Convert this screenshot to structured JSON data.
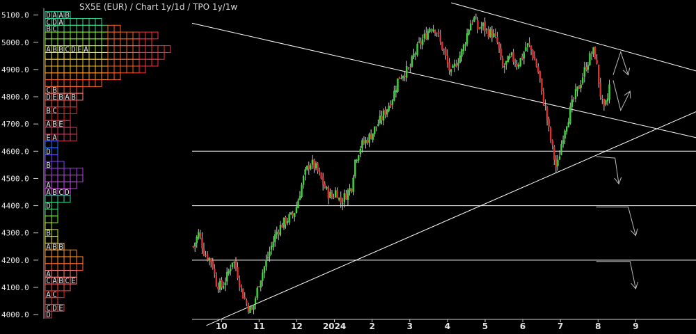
{
  "title": "SX5E (EUR) /  Chart 1y/1d / TPO 1y/1w",
  "chart_data": {
    "type": "candlestick",
    "ylim": [
      3985,
      5145
    ],
    "y_ticks": [
      4000,
      4100,
      4200,
      4300,
      4400,
      4500,
      4600,
      4700,
      4800,
      4900,
      5000,
      5100
    ],
    "y_tick_labels": [
      "4000.0",
      "4100.0",
      "4200.0",
      "4300.0",
      "4400.0",
      "4500.0",
      "4600.0",
      "4700.0",
      "4800.0",
      "4900.0",
      "5000.0",
      "5100.0"
    ],
    "x_tick_labels": [
      "10",
      "11",
      "12",
      "2024",
      "2",
      "3",
      "4",
      "5",
      "6",
      "7",
      "8",
      "9"
    ],
    "x_months": [
      0,
      1,
      2,
      3,
      4,
      5,
      6,
      7,
      8,
      9,
      10,
      11
    ],
    "xlim": [
      -0.78,
      12.6
    ],
    "close_path": [
      [
        -0.75,
        4250
      ],
      [
        -0.6,
        4300
      ],
      [
        -0.45,
        4225
      ],
      [
        -0.25,
        4195
      ],
      [
        -0.15,
        4120
      ],
      [
        0,
        4100
      ],
      [
        0.15,
        4140
      ],
      [
        0.3,
        4205
      ],
      [
        0.4,
        4165
      ],
      [
        0.55,
        4080
      ],
      [
        0.7,
        4030
      ],
      [
        0.8,
        4010
      ],
      [
        0.9,
        4060
      ],
      [
        1.0,
        4120
      ],
      [
        1.15,
        4180
      ],
      [
        1.3,
        4240
      ],
      [
        1.45,
        4300
      ],
      [
        1.6,
        4330
      ],
      [
        1.75,
        4350
      ],
      [
        1.9,
        4365
      ],
      [
        2.0,
        4400
      ],
      [
        2.1,
        4460
      ],
      [
        2.2,
        4510
      ],
      [
        2.35,
        4560
      ],
      [
        2.5,
        4540
      ],
      [
        2.6,
        4510
      ],
      [
        2.7,
        4480
      ],
      [
        2.8,
        4450
      ],
      [
        2.95,
        4430
      ],
      [
        3.05,
        4460
      ],
      [
        3.15,
        4410
      ],
      [
        3.3,
        4440
      ],
      [
        3.45,
        4470
      ],
      [
        3.55,
        4570
      ],
      [
        3.7,
        4620
      ],
      [
        3.85,
        4640
      ],
      [
        4.0,
        4665
      ],
      [
        4.1,
        4690
      ],
      [
        4.25,
        4720
      ],
      [
        4.4,
        4760
      ],
      [
        4.55,
        4800
      ],
      [
        4.7,
        4870
      ],
      [
        4.85,
        4890
      ],
      [
        5.0,
        4900
      ],
      [
        5.1,
        4950
      ],
      [
        5.25,
        4990
      ],
      [
        5.4,
        5020
      ],
      [
        5.55,
        5060
      ],
      [
        5.7,
        5050
      ],
      [
        5.8,
        5000
      ],
      [
        5.9,
        4970
      ],
      [
        6.0,
        4920
      ],
      [
        6.1,
        4880
      ],
      [
        6.25,
        4930
      ],
      [
        6.4,
        4970
      ],
      [
        6.5,
        5020
      ],
      [
        6.6,
        5070
      ],
      [
        6.7,
        5090
      ],
      [
        6.8,
        5050
      ],
      [
        6.95,
        5060
      ],
      [
        7.05,
        5040
      ],
      [
        7.2,
        5030
      ],
      [
        7.35,
        4990
      ],
      [
        7.45,
        4900
      ],
      [
        7.55,
        4920
      ],
      [
        7.7,
        4945
      ],
      [
        7.85,
        4920
      ],
      [
        8.0,
        4950
      ],
      [
        8.1,
        4990
      ],
      [
        8.2,
        4980
      ],
      [
        8.35,
        4920
      ],
      [
        8.45,
        4870
      ],
      [
        8.5,
        4810
      ],
      [
        8.6,
        4760
      ],
      [
        8.7,
        4670
      ],
      [
        8.8,
        4600
      ],
      [
        8.9,
        4530
      ],
      [
        9.0,
        4610
      ],
      [
        9.1,
        4680
      ],
      [
        9.2,
        4720
      ],
      [
        9.35,
        4790
      ],
      [
        9.5,
        4840
      ],
      [
        9.6,
        4880
      ],
      [
        9.7,
        4920
      ],
      [
        9.8,
        4950
      ],
      [
        9.9,
        4970
      ],
      [
        9.95,
        4930
      ],
      [
        10.05,
        4820
      ],
      [
        10.15,
        4745
      ],
      [
        10.25,
        4790
      ],
      [
        10.3,
        4840
      ]
    ],
    "levels": [
      {
        "y": 4600,
        "x_from": -0.78,
        "x_to": 12.6
      },
      {
        "y": 4400,
        "x_from": -0.78,
        "x_to": 12.6
      },
      {
        "y": 4200,
        "x_from": -0.78,
        "x_to": 12.6
      }
    ],
    "trendlines": [
      {
        "from": [
          -0.78,
          5070
        ],
        "to": [
          12.6,
          4650
        ]
      },
      {
        "from": [
          6.1,
          5145
        ],
        "to": [
          12.6,
          4895
        ]
      },
      {
        "from": [
          -0.4,
          3960
        ],
        "to": [
          12.6,
          4745
        ]
      }
    ],
    "sketch_arrows": [
      {
        "from": [
          10.4,
          4880
        ],
        "to": [
          10.6,
          4965
        ],
        "to2": [
          10.8,
          4880
        ]
      },
      {
        "from": [
          10.4,
          4860
        ],
        "to": [
          10.6,
          4750
        ],
        "to2": [
          10.85,
          4820
        ]
      },
      {
        "from": [
          9.95,
          4580
        ],
        "to": [
          10.45,
          4575
        ],
        "to2": [
          10.55,
          4480
        ]
      },
      {
        "from": [
          9.95,
          4395
        ],
        "to": [
          10.8,
          4395
        ],
        "to2": [
          11.0,
          4290
        ]
      },
      {
        "from": [
          9.95,
          4195
        ],
        "to": [
          10.85,
          4195
        ],
        "to2": [
          11.0,
          4095
        ]
      }
    ],
    "tpo": {
      "bucket": 25,
      "colors": [
        "#2ad9a0",
        "#40e08a",
        "#8af020",
        "#c8f010",
        "#f0f020",
        "#f5c020",
        "#ff9020",
        "#ff6030",
        "#ff8080",
        "#ff5050",
        "#ff2020",
        "#e0404a",
        "#c04060",
        "#4060ff",
        "#2080ff",
        "#8040ff",
        "#b030ff",
        "#d040ff",
        "#ff40ff"
      ],
      "rows": [
        {
          "y": 5100,
          "len": 4,
          "letters": [
            "D",
            "A",
            "A",
            "B"
          ]
        },
        {
          "y": 5075,
          "len": 9,
          "letters": [
            "C",
            "D",
            "A"
          ]
        },
        {
          "y": 5050,
          "len": 12,
          "letters": [
            "B",
            "C"
          ]
        },
        {
          "y": 5025,
          "len": 18,
          "letters": []
        },
        {
          "y": 5000,
          "len": 17,
          "letters": []
        },
        {
          "y": 4975,
          "len": 20,
          "letters": [
            "A",
            "B",
            "B",
            "C",
            "D",
            "E",
            "A"
          ]
        },
        {
          "y": 4950,
          "len": 19,
          "letters": []
        },
        {
          "y": 4925,
          "len": 18,
          "letters": []
        },
        {
          "y": 4900,
          "len": 16,
          "letters": []
        },
        {
          "y": 4875,
          "len": 12,
          "letters": []
        },
        {
          "y": 4850,
          "len": 9,
          "letters": []
        },
        {
          "y": 4825,
          "len": 6,
          "letters": [
            "C",
            "B"
          ]
        },
        {
          "y": 4800,
          "len": 6,
          "letters": [
            "D",
            "E",
            "B",
            "A",
            "B"
          ]
        },
        {
          "y": 4775,
          "len": 5,
          "letters": []
        },
        {
          "y": 4750,
          "len": 5,
          "letters": [
            "B",
            "C"
          ]
        },
        {
          "y": 4725,
          "len": 4,
          "letters": []
        },
        {
          "y": 4700,
          "len": 4,
          "letters": [
            "A",
            "B",
            "E"
          ]
        },
        {
          "y": 4675,
          "len": 5,
          "letters": []
        },
        {
          "y": 4650,
          "len": 5,
          "letters": [
            "E",
            "A"
          ]
        },
        {
          "y": 4625,
          "len": 2,
          "letters": []
        },
        {
          "y": 4600,
          "len": 2,
          "letters": [
            "D"
          ]
        },
        {
          "y": 4575,
          "len": 2,
          "letters": []
        },
        {
          "y": 4550,
          "len": 3,
          "letters": [
            "B"
          ]
        },
        {
          "y": 4525,
          "len": 6,
          "letters": []
        },
        {
          "y": 4500,
          "len": 6,
          "letters": []
        },
        {
          "y": 4475,
          "len": 5,
          "letters": [
            "A"
          ]
        },
        {
          "y": 4450,
          "len": 4,
          "letters": [
            "A",
            "B",
            "C",
            "D"
          ]
        },
        {
          "y": 4425,
          "len": 4,
          "letters": []
        },
        {
          "y": 4400,
          "len": 2,
          "letters": [
            "D"
          ]
        },
        {
          "y": 4375,
          "len": 2,
          "letters": []
        },
        {
          "y": 4350,
          "len": 2,
          "letters": []
        },
        {
          "y": 4325,
          "len": 1,
          "letters": []
        },
        {
          "y": 4300,
          "len": 2,
          "letters": [
            "B"
          ]
        },
        {
          "y": 4275,
          "len": 2,
          "letters": []
        },
        {
          "y": 4250,
          "len": 3,
          "letters": [
            "A",
            "B",
            "B"
          ]
        },
        {
          "y": 4225,
          "len": 5,
          "letters": []
        },
        {
          "y": 4200,
          "len": 6,
          "letters": []
        },
        {
          "y": 4175,
          "len": 6,
          "letters": []
        },
        {
          "y": 4150,
          "len": 5,
          "letters": [
            "A"
          ]
        },
        {
          "y": 4125,
          "len": 5,
          "letters": [
            "C",
            "A",
            "B",
            "C",
            "E"
          ]
        },
        {
          "y": 4100,
          "len": 4,
          "letters": []
        },
        {
          "y": 4075,
          "len": 3,
          "letters": [
            "A",
            "C"
          ]
        },
        {
          "y": 4050,
          "len": 2,
          "letters": []
        },
        {
          "y": 4025,
          "len": 3,
          "letters": [
            "C",
            "D",
            "E"
          ]
        },
        {
          "y": 4000,
          "len": 1,
          "letters": [
            "D"
          ]
        }
      ]
    }
  }
}
